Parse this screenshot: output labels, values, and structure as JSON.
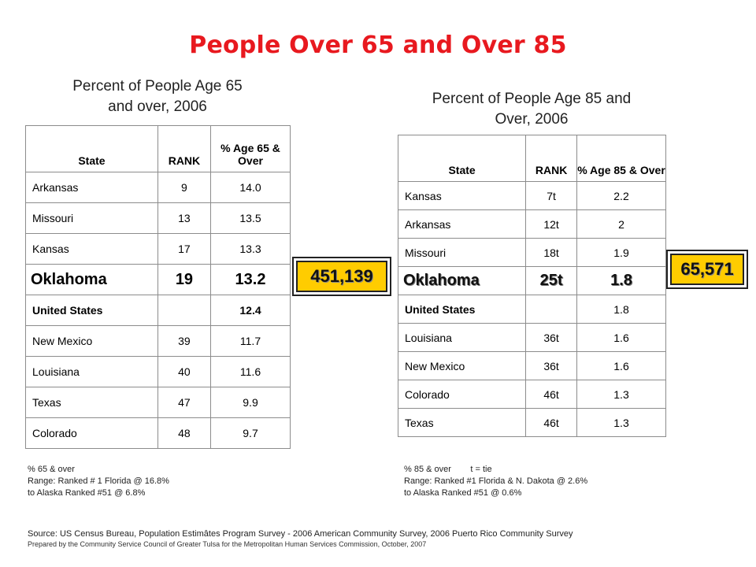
{
  "title": "People Over 65 and Over 85",
  "table65": {
    "title_line1": "Percent of People Age 65",
    "title_line2": "and over, 2006",
    "headers": [
      "State",
      "RANK",
      "% Age 65 & Over"
    ],
    "rows": [
      [
        "Arkansas",
        "9",
        "14.0"
      ],
      [
        "Missouri",
        "13",
        "13.5"
      ],
      [
        "Kansas",
        "17",
        "13.3"
      ],
      [
        "Oklahoma",
        "19",
        "13.2"
      ],
      [
        "United States",
        "",
        "12.4"
      ],
      [
        "New Mexico",
        "39",
        "11.7"
      ],
      [
        "Louisiana",
        "40",
        "11.6"
      ],
      [
        "Texas",
        "47",
        "9.9"
      ],
      [
        "Colorado",
        "48",
        "9.7"
      ]
    ],
    "badge": "451,139",
    "note_line1": "% 65 & over",
    "note_line2": "Range: Ranked # 1 Florida @ 16.8%",
    "note_line3": "to Alaska Ranked #51 @ 6.8%"
  },
  "table85": {
    "title_line1": "Percent of People Age 85 and",
    "title_line2": "Over, 2006",
    "headers": [
      "State",
      "RANK",
      "% Age 85 & Over"
    ],
    "rows": [
      [
        "Kansas",
        "7t",
        "2.2"
      ],
      [
        "Arkansas",
        "12t",
        "2"
      ],
      [
        "Missouri",
        "18t",
        "1.9"
      ],
      [
        "Oklahoma",
        "25t",
        "1.8"
      ],
      [
        "United States",
        "",
        "1.8"
      ],
      [
        "Louisiana",
        "36t",
        "1.6"
      ],
      [
        "New Mexico",
        "36t",
        "1.6"
      ],
      [
        "Colorado",
        "46t",
        "1.3"
      ],
      [
        "Texas",
        "46t",
        "1.3"
      ]
    ],
    "badge": "65,571",
    "note_line1": "% 85 & over        t = tie",
    "note_line2": "Range: Ranked #1 Florida & N. Dakota @ 2.6%",
    "note_line3": "to Alaska Ranked #51 @ 0.6%"
  },
  "source": "Source: US Census Bureau, Population Estimâtes Program Survey - 2006 American Community Survey, 2006 Puerto Rico Community Survey",
  "prepared": "Prepared by the Community Service Council of Greater Tulsa for the Metropolitan Human Services Commission, October, 2007"
}
